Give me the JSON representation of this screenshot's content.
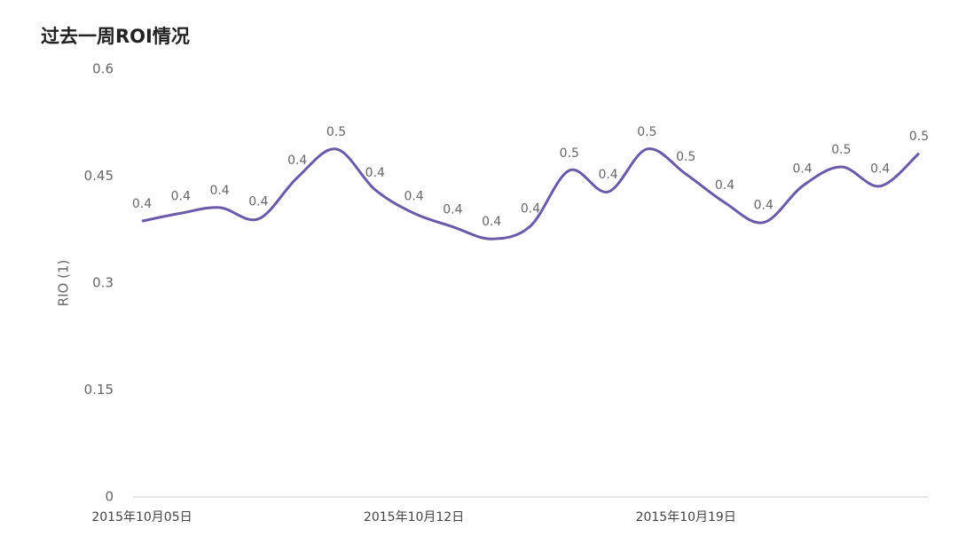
{
  "chart_data": {
    "type": "line",
    "title": "过去一周ROI情况",
    "y_label": "RIO (1)",
    "categories": [
      "2015年10月05日",
      null,
      null,
      null,
      null,
      null,
      null,
      "2015年10月12日",
      null,
      null,
      null,
      null,
      null,
      null,
      "2015年10月19日",
      null,
      null,
      null,
      null,
      null,
      null
    ],
    "series": [
      {
        "name": "ROI",
        "color": "#6a5aa8",
        "values": [
          0.387,
          0.398,
          0.406,
          0.39,
          0.448,
          0.488,
          0.431,
          0.398,
          0.379,
          0.362,
          0.38,
          0.458,
          0.428,
          0.488,
          0.453,
          0.413,
          0.385,
          0.436,
          0.463,
          0.436,
          0.482
        ],
        "value_labels": [
          "0.4",
          "0.4",
          "0.4",
          "0.4",
          "0.4",
          "0.5",
          "0.4",
          "0.4",
          "0.4",
          "0.4",
          "0.4",
          "0.5",
          "0.4",
          "0.5",
          "0.5",
          "0.4",
          "0.4",
          "0.4",
          "0.5",
          "0.4",
          "0.5"
        ]
      }
    ],
    "ylim": [
      0,
      0.6
    ],
    "yticks": [
      0,
      0.15,
      0.3,
      0.45,
      0.6
    ]
  }
}
